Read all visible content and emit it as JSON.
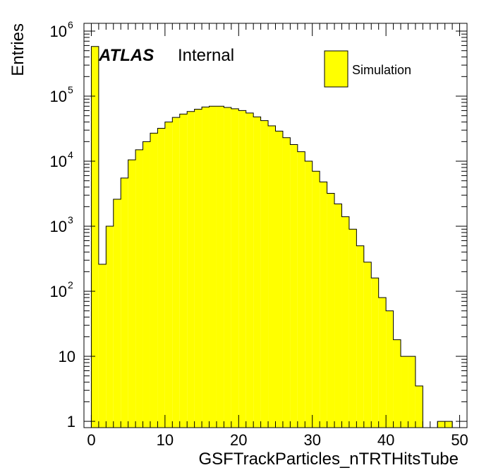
{
  "chart_data": {
    "type": "bar",
    "xlabel": "GSFTrackParticles_nTRTHitsTube",
    "ylabel": "Entries",
    "log_y": true,
    "xlim": [
      -1,
      51
    ],
    "ylim": [
      0.8,
      1000000
    ],
    "bin_width": 1,
    "x_ticks": [
      0,
      10,
      20,
      30,
      40,
      50
    ],
    "x_tick_labels": [
      "0",
      "10",
      "20",
      "30",
      "40",
      "50"
    ],
    "y_ticks": [
      1,
      10,
      100,
      1000,
      10000,
      100000,
      1000000
    ],
    "y_tick_labels": [
      {
        "base": "1",
        "exp": ""
      },
      {
        "base": "10",
        "exp": ""
      },
      {
        "base": "10",
        "exp": "2"
      },
      {
        "base": "10",
        "exp": "3"
      },
      {
        "base": "10",
        "exp": "4"
      },
      {
        "base": "10",
        "exp": "5"
      },
      {
        "base": "10",
        "exp": "6"
      }
    ],
    "bin_low_edges": [
      -1,
      0,
      1,
      2,
      3,
      4,
      5,
      6,
      7,
      8,
      9,
      10,
      11,
      12,
      13,
      14,
      15,
      16,
      17,
      18,
      19,
      20,
      21,
      22,
      23,
      24,
      25,
      26,
      27,
      28,
      29,
      30,
      31,
      32,
      33,
      34,
      35,
      36,
      37,
      38,
      39,
      40,
      41,
      42,
      43,
      44,
      45,
      46,
      47,
      48,
      49,
      50
    ],
    "values": [
      0,
      580000,
      260,
      1000,
      2600,
      5500,
      10500,
      15000,
      20000,
      27000,
      32000,
      40000,
      47000,
      53000,
      58000,
      63000,
      68000,
      70000,
      70000,
      67000,
      64000,
      60000,
      55000,
      48000,
      42000,
      35000,
      29000,
      23000,
      18000,
      14000,
      10000,
      7000,
      4800,
      3200,
      2200,
      1400,
      900,
      500,
      280,
      160,
      80,
      50,
      18,
      10,
      10,
      3.5,
      0,
      0,
      1,
      1,
      0,
      0
    ],
    "series": [
      {
        "name": "Simulation",
        "color": "#ffff00",
        "line_color": "#000000"
      }
    ],
    "legend": {
      "label": "Simulation",
      "position": "top-right"
    },
    "annotation": {
      "label_bold": "ATLAS",
      "label_normal": "Internal"
    }
  }
}
